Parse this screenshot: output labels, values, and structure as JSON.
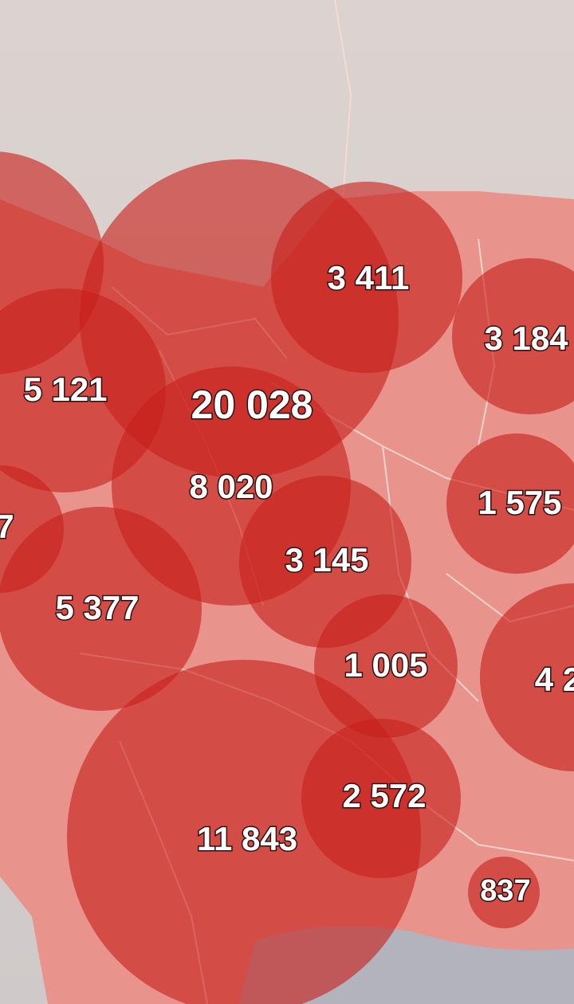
{
  "map": {
    "colors": {
      "bubble": "#c8201c",
      "territory": "#e8938c",
      "neighbor": "#d4cfce",
      "sea": "#a9b9c7",
      "border": "#f7d9d4",
      "label": "#ffffff"
    },
    "bubbles": [
      {
        "id": "nw-edge",
        "value": "",
        "r": 140
      },
      {
        "id": "north-large",
        "value": "",
        "r": 200
      },
      {
        "id": "north-east-1",
        "value": "3 411",
        "r": 120
      },
      {
        "id": "north-east-2",
        "value": "3 184",
        "r": 98
      },
      {
        "id": "west-1",
        "value": "5 121",
        "r": 128
      },
      {
        "id": "central-top",
        "value": "20 028",
        "r": 0
      },
      {
        "id": "central",
        "value": "8 020",
        "r": 150
      },
      {
        "id": "west-edge",
        "value": "7",
        "r": 80
      },
      {
        "id": "center-east",
        "value": "3 145",
        "r": 108
      },
      {
        "id": "east-1",
        "value": "1 575",
        "r": 88
      },
      {
        "id": "west-2",
        "value": "5 377",
        "r": 128
      },
      {
        "id": "center-south",
        "value": "1 005",
        "r": 90
      },
      {
        "id": "east-2",
        "value": "4 2",
        "r": 118
      },
      {
        "id": "south-west",
        "value": "11 843",
        "r": 222
      },
      {
        "id": "south-center",
        "value": "2 572",
        "r": 100
      },
      {
        "id": "south-east",
        "value": "837",
        "r": 45
      }
    ]
  }
}
